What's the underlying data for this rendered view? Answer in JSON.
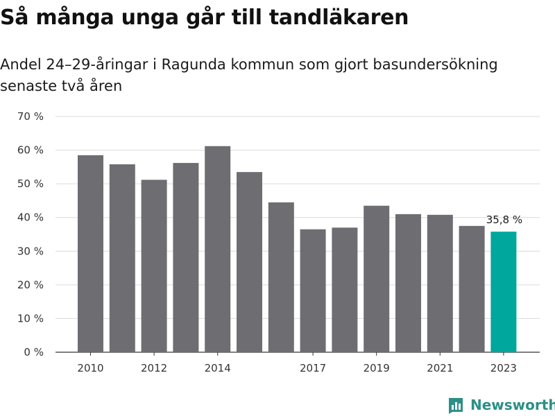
{
  "title": "Så många unga går till tandläkaren",
  "subtitle": "Andel 24–29-åringar i Ragunda kommun som gjort basundersökning senaste två åren",
  "brand": {
    "name": "Newsworthy",
    "color": "#2c8f88",
    "icon": "newsworthy-logo-icon"
  },
  "colors": {
    "bar": "#6e6d72",
    "highlight": "#00a79d",
    "grid": "#d9d9d9",
    "axis": "#333333"
  },
  "chart_data": {
    "type": "bar",
    "categories": [
      "2010",
      "2011",
      "2012",
      "2013",
      "2014",
      "2015",
      "2016",
      "2017",
      "2018",
      "2019",
      "2020",
      "2021",
      "2022",
      "2023"
    ],
    "values": [
      58.5,
      55.8,
      51.2,
      56.2,
      61.2,
      53.5,
      44.5,
      36.5,
      37.0,
      43.5,
      41.0,
      40.8,
      37.5,
      35.8
    ],
    "tick_labels": [
      "2010",
      "",
      "2012",
      "",
      "2014",
      "",
      "",
      "2017",
      "",
      "2019",
      "",
      "2021",
      "",
      "2023"
    ],
    "y_tick_labels": [
      "0 %",
      "10 %",
      "20 %",
      "30 %",
      "40 %",
      "50 %",
      "60 %",
      "70 %"
    ],
    "y_ticks": [
      0,
      10,
      20,
      30,
      40,
      50,
      60,
      70
    ],
    "ylim": [
      0,
      70
    ],
    "highlight_index": 13,
    "data_label": "35,8 %",
    "grid": true
  }
}
